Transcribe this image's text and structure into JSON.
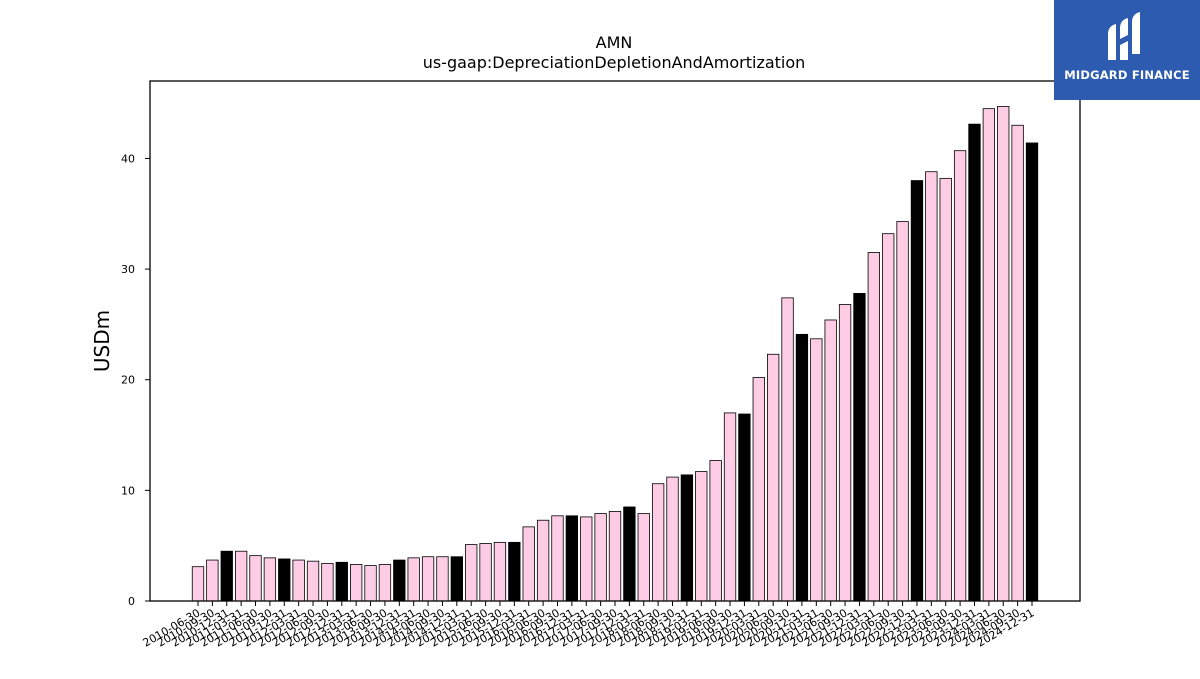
{
  "brand": {
    "name": "MIDGARD FINANCE",
    "background": "#2d5bb0",
    "mark_icon": "midgard-logo-icon"
  },
  "colors": {
    "bar_fill": "#ffcce6",
    "bar_highlight": "#000000",
    "bar_stroke": "#000000"
  },
  "chart_data": {
    "type": "bar",
    "title": "AMN",
    "subtitle": "us-gaap:DepreciationDepletionAndAmortization",
    "xlabel": "",
    "ylabel": "USDm",
    "ylim": [
      0,
      47
    ],
    "yticks": [
      0,
      10,
      20,
      30,
      40
    ],
    "grid": false,
    "legend": "none",
    "categories": [
      "2010-06-30",
      "2010-09-30",
      "2010-12-31",
      "2011-03-31",
      "2011-06-30",
      "2011-09-30",
      "2011-12-31",
      "2012-03-31",
      "2012-06-30",
      "2012-09-30",
      "2012-12-31",
      "2013-03-31",
      "2013-06-30",
      "2013-09-30",
      "2013-12-31",
      "2014-03-31",
      "2014-06-30",
      "2014-09-30",
      "2014-12-31",
      "2015-03-31",
      "2015-06-30",
      "2015-09-30",
      "2015-12-31",
      "2016-03-31",
      "2016-06-30",
      "2016-09-30",
      "2016-12-31",
      "2017-03-31",
      "2017-06-30",
      "2017-09-30",
      "2017-12-31",
      "2018-03-31",
      "2018-06-30",
      "2018-09-30",
      "2018-12-31",
      "2019-03-31",
      "2019-06-30",
      "2019-09-30",
      "2019-12-31",
      "2020-03-31",
      "2020-06-30",
      "2020-09-30",
      "2020-12-31",
      "2021-03-31",
      "2021-06-30",
      "2021-09-30",
      "2021-12-31",
      "2022-03-31",
      "2022-06-30",
      "2022-09-30",
      "2022-12-31",
      "2023-03-31",
      "2023-06-30",
      "2023-09-30",
      "2023-12-31",
      "2024-03-31",
      "2024-06-30",
      "2024-09-30",
      "2024-12-31"
    ],
    "values": [
      3.1,
      3.7,
      4.5,
      4.5,
      4.1,
      3.9,
      3.8,
      3.7,
      3.6,
      3.4,
      3.5,
      3.3,
      3.2,
      3.3,
      3.7,
      3.9,
      4.0,
      4.0,
      4.0,
      5.1,
      5.2,
      5.3,
      5.3,
      6.7,
      7.3,
      7.7,
      7.7,
      7.6,
      7.9,
      8.1,
      8.5,
      7.9,
      10.6,
      11.2,
      11.4,
      11.7,
      12.7,
      17.0,
      16.9,
      20.2,
      22.3,
      27.4,
      24.1,
      23.7,
      25.4,
      26.8,
      27.8,
      31.5,
      33.2,
      34.3,
      38.0,
      38.8,
      38.2,
      40.7,
      43.1,
      44.5,
      44.7,
      43.0,
      41.4
    ],
    "highlight_categories": [
      "2010-12-31",
      "2011-12-31",
      "2012-12-31",
      "2013-12-31",
      "2014-12-31",
      "2015-12-31",
      "2016-12-31",
      "2017-12-31",
      "2018-12-31",
      "2019-12-31",
      "2020-12-31",
      "2021-12-31",
      "2022-12-31",
      "2023-12-31",
      "2024-12-31"
    ]
  }
}
